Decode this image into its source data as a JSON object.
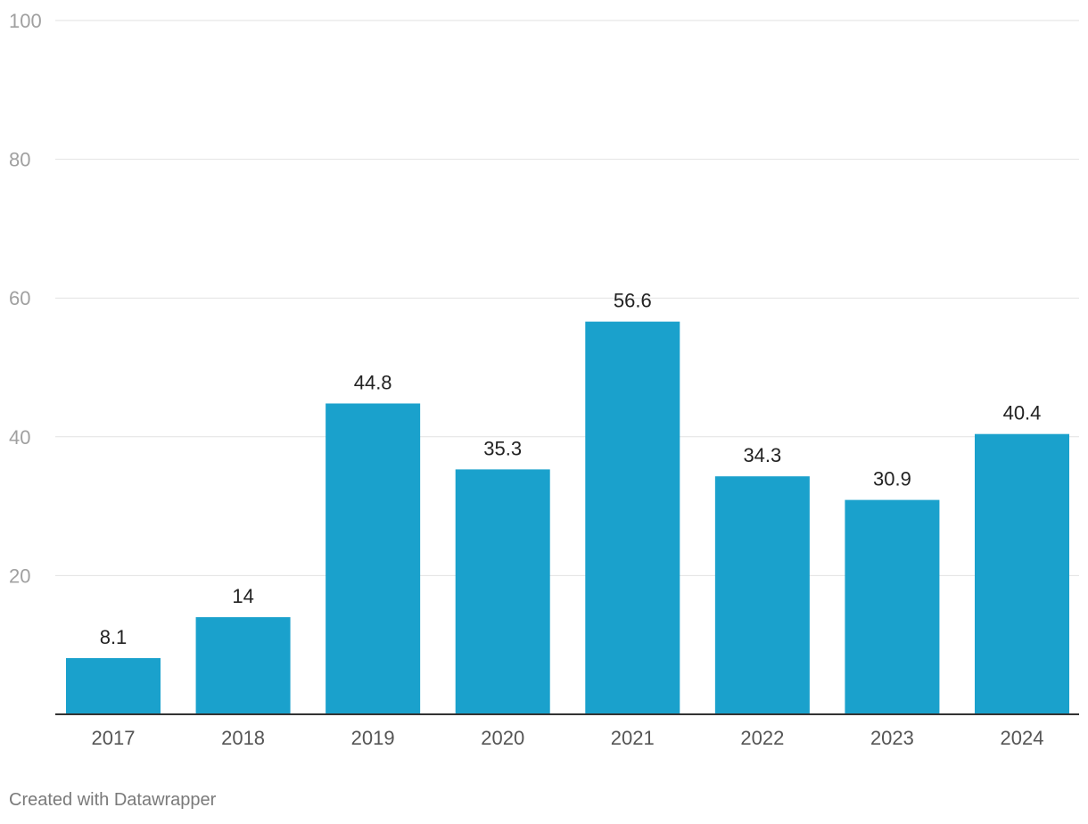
{
  "chart_data": {
    "type": "bar",
    "categories": [
      "2017",
      "2018",
      "2019",
      "2020",
      "2021",
      "2022",
      "2023",
      "2024"
    ],
    "values": [
      8.1,
      14,
      44.8,
      35.3,
      56.6,
      34.3,
      30.9,
      40.4
    ],
    "value_labels": [
      "8.1",
      "14",
      "44.8",
      "35.3",
      "56.6",
      "34.3",
      "30.9",
      "40.4"
    ],
    "yticks": [
      20,
      40,
      60,
      80,
      100
    ],
    "ylim": [
      0,
      100
    ],
    "grid": true,
    "bar_color": "#1aa1cc",
    "title": "",
    "xlabel": "",
    "ylabel": ""
  },
  "footer": {
    "credit": "Created with Datawrapper"
  }
}
